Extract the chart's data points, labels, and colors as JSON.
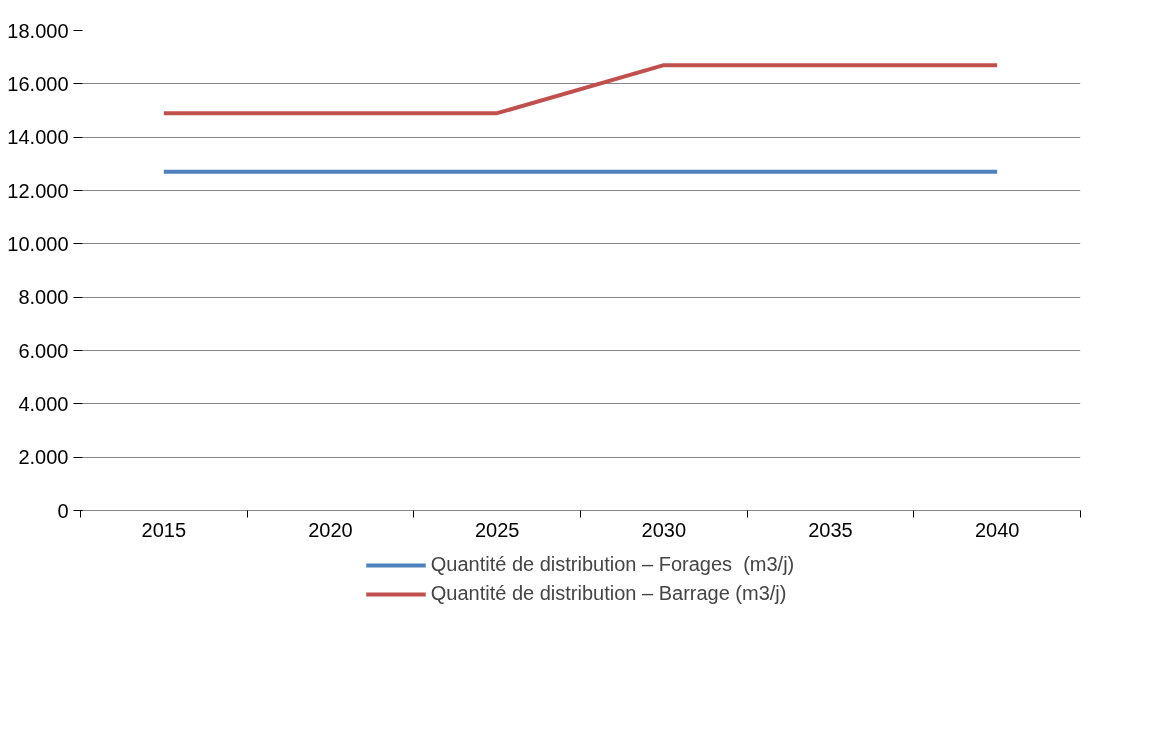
{
  "chart_data": {
    "type": "line",
    "categories": [
      "2015",
      "2020",
      "2025",
      "2030",
      "2035",
      "2040"
    ],
    "series": [
      {
        "name": "Quantité de distribution – Forages  (m3/j)",
        "color": "#4f81bd",
        "values": [
          12700,
          12700,
          12700,
          12700,
          12700,
          12700
        ]
      },
      {
        "name": "Quantité de distribution – Barrage (m3/j)",
        "color": "#c0504d",
        "values": [
          14900,
          14900,
          14900,
          16700,
          16700,
          16700
        ]
      }
    ],
    "ylim": [
      0,
      18000
    ],
    "yticks": [
      0,
      {
        "value": 2000,
        "label": "2.000"
      },
      {
        "value": 4000,
        "label": "4.000"
      },
      {
        "value": 6000,
        "label": "6.000"
      },
      {
        "value": 8000,
        "label": "8.000"
      },
      {
        "value": 10000,
        "label": "10.000"
      },
      {
        "value": 12000,
        "label": "12.000"
      },
      {
        "value": 14000,
        "label": "14.000"
      },
      {
        "value": 16000,
        "label": "16.000"
      },
      {
        "value": 18000,
        "label": "18.000"
      }
    ],
    "grid": "y",
    "legend": "bottom",
    "marker": "none",
    "line_style": "solid"
  }
}
